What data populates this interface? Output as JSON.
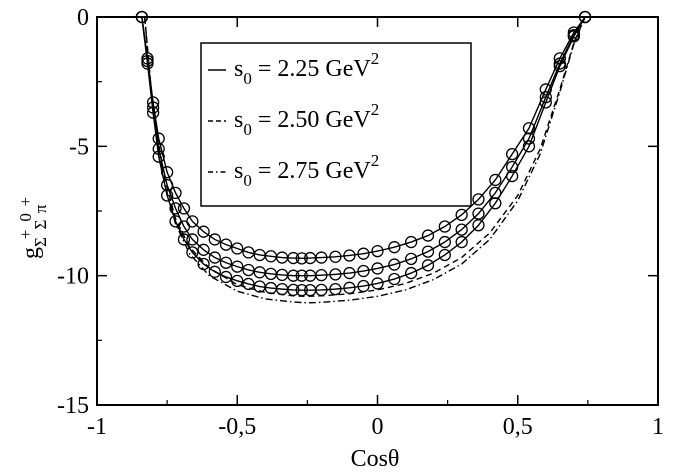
{
  "chart_data": {
    "type": "line",
    "title": "",
    "xlabel": "Cosθ",
    "ylabel": {
      "main": "g",
      "sub1": "Σ",
      "sup1": "+",
      "sub2": "Σ",
      "sup2": "0",
      "sub3": "π",
      "sup3": "+"
    },
    "xlim": [
      -1,
      1
    ],
    "ylim": [
      -15,
      0
    ],
    "xticks": [
      -1,
      -0.5,
      0,
      0.5,
      1
    ],
    "xtick_labels": [
      "-1",
      "-0,5",
      "0",
      "0,5",
      "1"
    ],
    "yticks": [
      0,
      -5,
      -10,
      -15
    ],
    "ytick_labels": [
      "0",
      "-5",
      "-10",
      "-15"
    ],
    "grid": false,
    "legend_position": "top-center",
    "legend": [
      {
        "pre": "s",
        "sub": "0",
        "text": " = 2.25 GeV",
        "sup": "2",
        "dash": "solid"
      },
      {
        "pre": "s",
        "sub": "0",
        "text": " = 2.50 GeV",
        "sup": "2",
        "dash": "dashed"
      },
      {
        "pre": "s",
        "sub": "0",
        "text": " = 2.75 GeV",
        "sup": "2",
        "dash": "dashdot"
      }
    ],
    "series": [
      {
        "name": "s0 = 2.25 GeV2",
        "line_style": "solid",
        "x": [
          -0.84,
          -0.82,
          -0.8,
          -0.78,
          -0.75,
          -0.72,
          -0.69,
          -0.66,
          -0.62,
          -0.58,
          -0.54,
          -0.5,
          -0.46,
          -0.42,
          -0.38,
          -0.34,
          -0.3,
          -0.27,
          -0.24,
          -0.2,
          -0.15,
          -0.1,
          -0.05,
          0,
          0.06,
          0.12,
          0.18,
          0.24,
          0.3,
          0.36,
          0.42,
          0.48,
          0.54,
          0.6,
          0.65,
          0.7,
          0.74
        ],
        "y": [
          0,
          -1.6,
          -3.3,
          -4.7,
          -6.0,
          -6.8,
          -7.4,
          -7.9,
          -8.3,
          -8.6,
          -8.8,
          -8.95,
          -9.1,
          -9.2,
          -9.25,
          -9.3,
          -9.32,
          -9.33,
          -9.32,
          -9.3,
          -9.27,
          -9.22,
          -9.15,
          -9.05,
          -8.9,
          -8.7,
          -8.45,
          -8.1,
          -7.65,
          -7.05,
          -6.3,
          -5.3,
          -4.3,
          -2.8,
          -1.6,
          -0.6,
          0
        ],
        "markers": true
      },
      {
        "name": "s0 = 2.50 GeV2",
        "line_style": "solid",
        "x": [
          -0.84,
          -0.82,
          -0.8,
          -0.78,
          -0.75,
          -0.72,
          -0.69,
          -0.66,
          -0.62,
          -0.58,
          -0.54,
          -0.5,
          -0.46,
          -0.42,
          -0.38,
          -0.34,
          -0.3,
          -0.27,
          -0.24,
          -0.2,
          -0.15,
          -0.1,
          -0.05,
          0,
          0.06,
          0.12,
          0.18,
          0.24,
          0.3,
          0.36,
          0.42,
          0.48,
          0.54,
          0.6,
          0.65,
          0.7,
          0.74
        ],
        "y": [
          0,
          -1.7,
          -3.5,
          -5.1,
          -6.5,
          -7.4,
          -8.1,
          -8.6,
          -9.0,
          -9.3,
          -9.5,
          -9.65,
          -9.78,
          -9.87,
          -9.93,
          -9.97,
          -10.0,
          -10.0,
          -10.0,
          -9.98,
          -9.95,
          -9.9,
          -9.82,
          -9.72,
          -9.57,
          -9.35,
          -9.07,
          -8.7,
          -8.22,
          -7.6,
          -6.8,
          -5.8,
          -4.7,
          -3.1,
          -1.8,
          -0.7,
          0
        ],
        "markers": true
      },
      {
        "name": "s0 = 2.75 GeV2",
        "line_style": "solid",
        "x": [
          -0.84,
          -0.82,
          -0.8,
          -0.78,
          -0.75,
          -0.72,
          -0.69,
          -0.66,
          -0.62,
          -0.58,
          -0.54,
          -0.5,
          -0.46,
          -0.42,
          -0.38,
          -0.34,
          -0.3,
          -0.27,
          -0.24,
          -0.2,
          -0.15,
          -0.1,
          -0.05,
          0,
          0.06,
          0.12,
          0.18,
          0.24,
          0.3,
          0.36,
          0.42,
          0.48,
          0.54,
          0.6,
          0.65,
          0.7,
          0.74
        ],
        "y": [
          0,
          -1.8,
          -3.7,
          -5.4,
          -6.9,
          -7.9,
          -8.6,
          -9.1,
          -9.55,
          -9.85,
          -10.05,
          -10.2,
          -10.32,
          -10.42,
          -10.48,
          -10.52,
          -10.55,
          -10.56,
          -10.56,
          -10.55,
          -10.52,
          -10.47,
          -10.4,
          -10.3,
          -10.13,
          -9.9,
          -9.6,
          -9.2,
          -8.7,
          -8.05,
          -7.2,
          -6.15,
          -5.0,
          -3.3,
          -1.9,
          -0.75,
          0
        ],
        "markers": true
      },
      {
        "name": "",
        "line_style": "dashed",
        "x": [
          -0.83,
          -0.8,
          -0.76,
          -0.72,
          -0.67,
          -0.6,
          -0.5,
          -0.4,
          -0.3,
          -0.25,
          -0.2,
          -0.1,
          0,
          0.1,
          0.2,
          0.3,
          0.4,
          0.5,
          0.58,
          0.65,
          0.7,
          0.74
        ],
        "y": [
          0,
          -3.6,
          -6.2,
          -7.8,
          -8.9,
          -9.7,
          -10.35,
          -10.65,
          -10.78,
          -10.8,
          -10.78,
          -10.7,
          -10.55,
          -10.3,
          -9.9,
          -9.3,
          -8.35,
          -6.9,
          -5.1,
          -2.8,
          -1.0,
          0
        ],
        "markers": false
      },
      {
        "name": "",
        "line_style": "dashdot",
        "x": [
          -0.83,
          -0.8,
          -0.76,
          -0.72,
          -0.67,
          -0.6,
          -0.5,
          -0.4,
          -0.3,
          -0.25,
          -0.2,
          -0.1,
          0,
          0.1,
          0.2,
          0.3,
          0.4,
          0.5,
          0.58,
          0.65,
          0.7,
          0.74
        ],
        "y": [
          0,
          -3.7,
          -6.4,
          -8.0,
          -9.15,
          -10.0,
          -10.6,
          -10.9,
          -11.02,
          -11.05,
          -11.03,
          -10.95,
          -10.8,
          -10.55,
          -10.15,
          -9.55,
          -8.6,
          -7.1,
          -5.3,
          -2.9,
          -1.05,
          0
        ],
        "markers": false
      }
    ]
  }
}
